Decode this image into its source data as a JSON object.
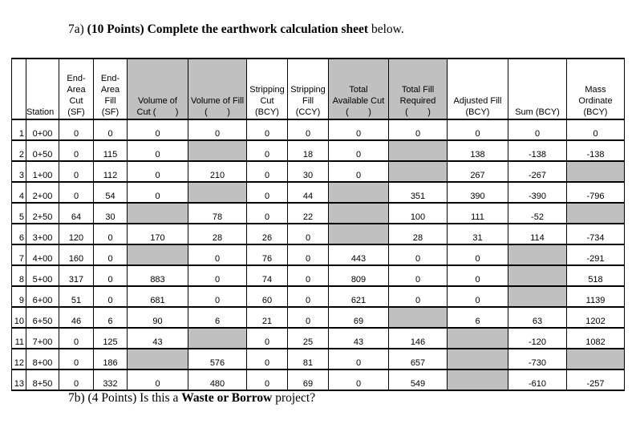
{
  "question_a": {
    "label": "7a)",
    "points": "(10 Points)",
    "text_bold": "Complete the earthwork calculation sheet",
    "text_rest": " below."
  },
  "question_b": {
    "label": "7b)",
    "points": "(4 Points)",
    "text_pre": " Is this a ",
    "text_bold": "Waste or Borrow",
    "text_post": " project?"
  },
  "shade_color": "#c0c0c0",
  "headers": [
    {
      "text": "",
      "shaded": false
    },
    {
      "text": "Station",
      "shaded": false
    },
    {
      "text": "End-\nArea\nCut\n(SF)",
      "shaded": false
    },
    {
      "text": "End-\nArea\nFill\n(SF)",
      "shaded": false
    },
    {
      "text": "Volume of\nCut (        )",
      "shaded": true
    },
    {
      "text": "Volume of Fill\n(        )",
      "shaded": true
    },
    {
      "text": "Stripping\nCut\n(BCY)",
      "shaded": false
    },
    {
      "text": "Stripping\nFill\n(CCY)",
      "shaded": false
    },
    {
      "text": "Total\nAvailable Cut\n(        )",
      "shaded": true
    },
    {
      "text": "Total Fill\nRequired\n(        )",
      "shaded": true
    },
    {
      "text": "Adjusted Fill\n(BCY)",
      "shaded": false
    },
    {
      "text": "Sum (BCY)",
      "shaded": false
    },
    {
      "text": "Mass\nOrdinate\n(BCY)",
      "shaded": false
    }
  ],
  "rows": [
    [
      "1",
      "0+00",
      "0",
      "0",
      "0",
      "0",
      "0",
      "0",
      "0",
      "0",
      "0",
      "0",
      "0"
    ],
    [
      "2",
      "0+50",
      "0",
      "115",
      "0",
      null,
      "0",
      "18",
      "0",
      null,
      "138",
      "-138",
      "-138"
    ],
    [
      "3",
      "1+00",
      "0",
      "112",
      "0",
      "210",
      "0",
      "30",
      "0",
      null,
      "267",
      "-267",
      null
    ],
    [
      "4",
      "2+00",
      "0",
      "54",
      "0",
      null,
      "0",
      "44",
      null,
      "351",
      "390",
      "-390",
      "-796"
    ],
    [
      "5",
      "2+50",
      "64",
      "30",
      null,
      "78",
      "0",
      "22",
      null,
      "100",
      "111",
      "-52",
      null
    ],
    [
      "6",
      "3+00",
      "120",
      "0",
      "170",
      "28",
      "26",
      "0",
      null,
      "28",
      "31",
      "114",
      "-734"
    ],
    [
      "7",
      "4+00",
      "160",
      "0",
      null,
      "0",
      "76",
      "0",
      "443",
      "0",
      "0",
      null,
      "-291"
    ],
    [
      "8",
      "5+00",
      "317",
      "0",
      "883",
      "0",
      "74",
      "0",
      "809",
      "0",
      "0",
      null,
      "518"
    ],
    [
      "9",
      "6+00",
      "51",
      "0",
      "681",
      "0",
      "60",
      "0",
      "621",
      "0",
      "0",
      null,
      "1139"
    ],
    [
      "10",
      "6+50",
      "46",
      "6",
      "90",
      "6",
      "21",
      "0",
      "69",
      null,
      "6",
      "63",
      "1202"
    ],
    [
      "11",
      "7+00",
      "0",
      "125",
      "43",
      null,
      "0",
      "25",
      "43",
      "146",
      null,
      "-120",
      "1082"
    ],
    [
      "12",
      "8+00",
      "0",
      "186",
      null,
      "576",
      "0",
      "81",
      "0",
      "657",
      null,
      "-730",
      null
    ],
    [
      "13",
      "8+50",
      "0",
      "332",
      "0",
      "480",
      "0",
      "69",
      "0",
      "549",
      null,
      "-610",
      "-257"
    ]
  ]
}
